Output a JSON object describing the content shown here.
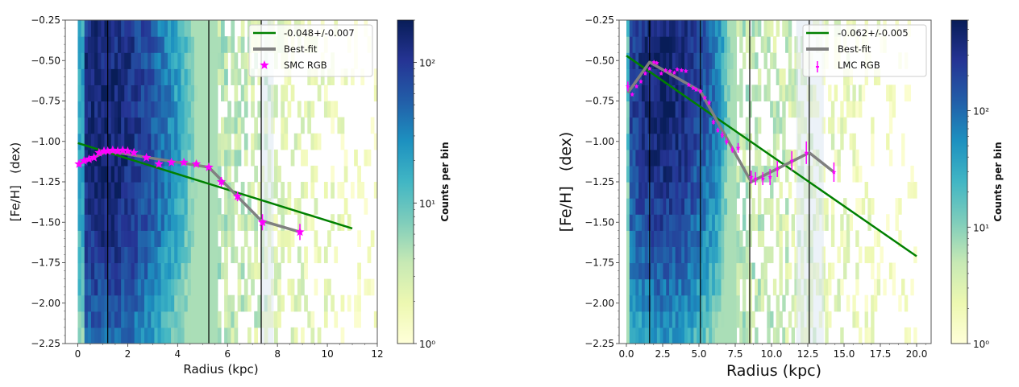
{
  "chart_data": [
    {
      "type": "heatmap",
      "panel": "left",
      "title": "",
      "xlabel": "Radius (kpc)",
      "ylabel": "[Fe/H]   (dex)",
      "xlim": [
        -0.5,
        12
      ],
      "ylim": [
        -2.25,
        -0.25
      ],
      "xticks": [
        0,
        2,
        4,
        6,
        8,
        10,
        12
      ],
      "xtick_labels": [
        "0",
        "2",
        "4",
        "6",
        "8",
        "10",
        "12"
      ],
      "yticks": [
        -0.25,
        -0.5,
        -0.75,
        -1.0,
        -1.25,
        -1.5,
        -1.75,
        -2.0,
        -2.25
      ],
      "ytick_labels": [
        "−0.25",
        "−0.50",
        "−0.75",
        "−1.00",
        "−1.25",
        "−1.50",
        "−1.75",
        "−2.00",
        "−2.25"
      ],
      "vertical_lines": [
        1.2,
        5.25,
        7.35
      ],
      "shaded_band": [
        7.35,
        7.85
      ],
      "heatmap_extent_x": [
        0,
        12
      ],
      "heatmap_peak_x": 1.0,
      "heatmap_peak_y": -0.95,
      "heatmap_dense_until_x": 5.5,
      "colorbar": {
        "label": "Counts per bin",
        "scale": "log",
        "range": [
          1,
          200
        ],
        "ticks": [
          1,
          10,
          100
        ],
        "tick_labels": [
          "10⁰",
          "10¹",
          "10²"
        ],
        "colormap": "YlGnBu"
      },
      "legend": {
        "position": "top-right",
        "entries": [
          {
            "label": "-0.048+/-0.007",
            "kind": "line",
            "color": "#008000"
          },
          {
            "label": "Best-fit",
            "kind": "line",
            "color": "#808080"
          },
          {
            "label": "SMC RGB",
            "kind": "star",
            "color": "#ff00ff"
          }
        ]
      },
      "series": [
        {
          "name": "-0.048+/-0.007",
          "kind": "line",
          "color": "#008000",
          "x": [
            0,
            11
          ],
          "y": [
            -1.01,
            -1.538
          ]
        },
        {
          "name": "Best-fit",
          "kind": "line",
          "color": "#808080",
          "x": [
            0.05,
            1.2,
            5.25,
            7.35,
            8.9
          ],
          "y": [
            -1.14,
            -1.06,
            -1.16,
            -1.49,
            -1.56
          ]
        },
        {
          "name": "SMC RGB",
          "kind": "scatter-errorbar",
          "marker": "star",
          "color": "#ff00ff",
          "x": [
            0.05,
            0.25,
            0.45,
            0.65,
            0.85,
            1.05,
            1.2,
            1.4,
            1.6,
            1.8,
            2.0,
            2.25,
            2.75,
            3.25,
            3.75,
            4.25,
            4.75,
            5.25,
            5.75,
            6.4,
            7.4,
            8.9
          ],
          "y": [
            -1.14,
            -1.12,
            -1.11,
            -1.1,
            -1.07,
            -1.06,
            -1.06,
            -1.055,
            -1.06,
            -1.055,
            -1.06,
            -1.07,
            -1.1,
            -1.14,
            -1.13,
            -1.13,
            -1.14,
            -1.16,
            -1.25,
            -1.34,
            -1.5,
            -1.56
          ],
          "yerr": [
            0.015,
            0.01,
            0.01,
            0.01,
            0.01,
            0.01,
            0.01,
            0.01,
            0.01,
            0.01,
            0.01,
            0.01,
            0.01,
            0.01,
            0.01,
            0.01,
            0.01,
            0.01,
            0.03,
            0.03,
            0.05,
            0.05
          ]
        }
      ]
    },
    {
      "type": "heatmap",
      "panel": "right",
      "title": "",
      "xlabel": "Radius (kpc)",
      "ylabel": "[Fe/H]   (dex)",
      "xlim": [
        -0.5,
        21
      ],
      "ylim": [
        -2.25,
        -0.25
      ],
      "xticks": [
        0,
        2.5,
        5,
        7.5,
        10,
        12.5,
        15,
        17.5,
        20
      ],
      "xtick_labels": [
        "0.0",
        "2.5",
        "5.0",
        "7.5",
        "10.0",
        "12.5",
        "15.0",
        "17.5",
        "20.0"
      ],
      "yticks": [
        -0.25,
        -0.5,
        -0.75,
        -1.0,
        -1.25,
        -1.5,
        -1.75,
        -2.0,
        -2.25
      ],
      "ytick_labels": [
        "−0.25",
        "−0.50",
        "−0.75",
        "−1.00",
        "−1.25",
        "−1.50",
        "−1.75",
        "−2.00",
        "−2.25"
      ],
      "vertical_lines": [
        1.6,
        5.1,
        8.5,
        12.6
      ],
      "shaded_band": [
        11.7,
        13.6
      ],
      "heatmap_extent_x": [
        0,
        20
      ],
      "heatmap_peak_x": 2.5,
      "heatmap_peak_y": -0.6,
      "heatmap_dense_until_x": 7.5,
      "colorbar": {
        "label": "Counts per bin",
        "scale": "log",
        "range": [
          1,
          600
        ],
        "ticks": [
          1,
          10,
          100
        ],
        "tick_labels": [
          "10⁰",
          "10¹",
          "10²"
        ],
        "colormap": "YlGnBu"
      },
      "legend": {
        "position": "top-right",
        "entries": [
          {
            "label": "-0.062+/-0.005",
            "kind": "line",
            "color": "#008000"
          },
          {
            "label": "Best-fit",
            "kind": "line",
            "color": "#808080"
          },
          {
            "label": "LMC RGB",
            "kind": "errorbar",
            "color": "#ff00ff"
          }
        ]
      },
      "series": [
        {
          "name": "-0.062+/-0.005",
          "kind": "line",
          "color": "#008000",
          "x": [
            0,
            20
          ],
          "y": [
            -0.47,
            -1.71
          ]
        },
        {
          "name": "Best-fit",
          "kind": "line",
          "color": "#808080",
          "x": [
            0.1,
            1.6,
            5.1,
            8.6,
            12.6,
            14.3
          ],
          "y": [
            -0.7,
            -0.51,
            -0.69,
            -1.25,
            -1.07,
            -1.19
          ]
        },
        {
          "name": "LMC RGB",
          "kind": "scatter-errorbar",
          "marker": "small-star",
          "color": "#ff00ff",
          "x": [
            0.1,
            0.4,
            0.7,
            1.0,
            1.3,
            1.6,
            1.9,
            2.1,
            2.4,
            2.7,
            3.0,
            3.3,
            3.5,
            3.8,
            4.1,
            4.3,
            4.6,
            4.8,
            5.1,
            5.4,
            5.7,
            6.0,
            6.3,
            6.6,
            6.9,
            7.3,
            7.7,
            8.6,
            8.9,
            9.4,
            9.9,
            10.4,
            11.4,
            12.4,
            14.3
          ],
          "y": [
            -0.66,
            -0.71,
            -0.66,
            -0.63,
            -0.58,
            -0.55,
            -0.51,
            -0.515,
            -0.58,
            -0.56,
            -0.565,
            -0.575,
            -0.555,
            -0.56,
            -0.565,
            -0.65,
            -0.67,
            -0.68,
            -0.69,
            -0.73,
            -0.76,
            -0.88,
            -0.93,
            -0.96,
            -1.0,
            -1.05,
            -1.04,
            -1.22,
            -1.23,
            -1.23,
            -1.22,
            -1.17,
            -1.12,
            -1.07,
            -1.19
          ],
          "yerr": [
            0.03,
            0.01,
            0.01,
            0.01,
            0.01,
            0.01,
            0.01,
            0.01,
            0.01,
            0.01,
            0.01,
            0.01,
            0.01,
            0.01,
            0.01,
            0.01,
            0.01,
            0.01,
            0.01,
            0.01,
            0.015,
            0.015,
            0.015,
            0.02,
            0.02,
            0.02,
            0.03,
            0.04,
            0.04,
            0.04,
            0.05,
            0.05,
            0.06,
            0.07,
            0.06
          ]
        }
      ]
    }
  ]
}
